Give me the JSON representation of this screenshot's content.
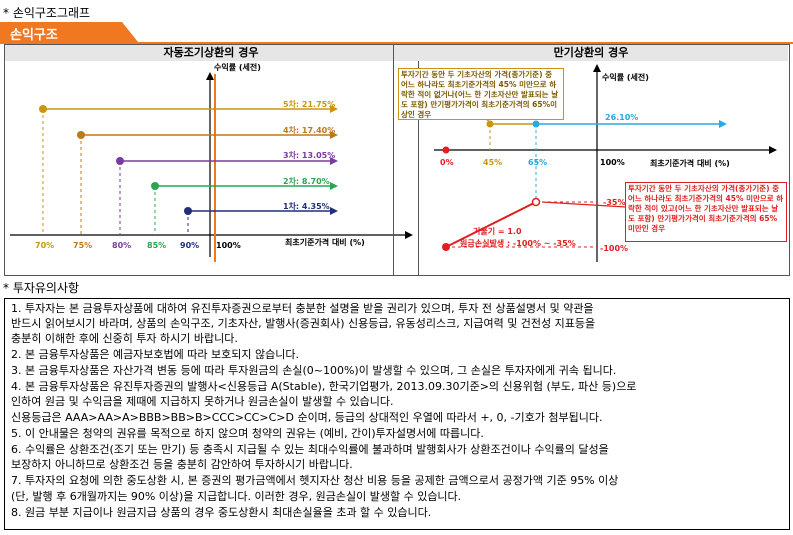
{
  "header": {
    "section_title": "* 손익구조그래프",
    "tab_label": "손익구조"
  },
  "left_panel": {
    "title": "자동조기상환의 경우",
    "y_axis_label": "수익률 (세전)",
    "x_axis_label": "최초기준가격 대비 (%)",
    "x_ticks": [
      "70%",
      "75%",
      "80%",
      "85%",
      "90%",
      "100%"
    ],
    "series_labels": [
      "5차: 21.75%",
      "4차: 17.40%",
      "3차: 13.05%",
      "2차: 8.70%",
      "1차: 4.35%"
    ]
  },
  "right_panel": {
    "title": "만기상환의 경우",
    "y_axis_label": "수익률 (세전)",
    "x_axis_label": "최초기준가격 대비 (%)",
    "x_ticks": [
      "0%",
      "45%",
      "65%",
      "100%"
    ],
    "return_label": "26.10%",
    "loss_label_35": "-35%",
    "loss_label_100": "-100%",
    "slope_label": "기울기 = 1.0",
    "loss_range_label": "원금손실발생 : -100% ~ -35%",
    "callout_top": "투자기간 동안 두 기초자산의 가격(종가기준) 중 어느 하나라도 최초기준가격의 45% 미만으로 하락한 적이 없거나(어느 한 기초자산만 발표되는 날도 포함) 만기평가가격이 최초기준가격의 65%이상인 경우",
    "callout_bottom": "투자기간 동안 두 기초자산의 가격(종가기준) 중 어느 하나라도 최초기준가격의 45% 미만으로 하락한 적이 있고(어느 한 기초자산만 발표되는 날도 포함) 만기평가가격이 최초기준가격의 65%미만인 경우"
  },
  "notes_section": {
    "title": "* 투자유의사항",
    "lines": [
      "1. 투자자는 본 금융투자상품에 대하여 유진투자증권으로부터 충분한 설명을 받을 권리가 있으며, 투자 전 상품설명서 및 약관을",
      "    반드시 읽어보시기 바라며, 상품의 손익구조, 기초자산, 발행사(증권회사) 신용등급, 유동성리스크, 지급여력 및 건전성 지표등을",
      "    충분히 이해한 후에 신중히 투자 하시기 바랍니다.",
      "2. 본 금융투자상품은 예금자보호법에 따라 보호되지 않습니다.",
      "3. 본 금융투자상품은 자산가격 변동 등에 따라 투자원금의 손실(0~100%)이 발생할 수 있으며, 그 손실은 투자자에게 귀속 됩니다.",
      "4. 본 금융투자상품은 유진투자증권의 발행사<신용등급 A(Stable), 한국기업평가, 2013.09.30기준>의 신용위험 (부도, 파산 등)으로",
      "    인하여 원금 및 수익금을 제때에 지급하지 못하거나 원금손실이 발생할 수 있습니다.",
      "    신용등급은 AAA>AA>A>BBB>BB>B>CCC>CC>C>D 순이며, 등급의 상대적인 우열에 따라서 +, 0, -기호가 첨부됩니다.",
      "5. 이 안내물은 청약의 권유를 목적으로 하지 않으며 청약의 권유는 (예비, 간이)투자설명서에 따릅니다.",
      "6. 수익률은 상환조건(조기 또는 만기) 등 충족시 지급될 수 있는 최대수익률에 불과하며 발행회사가 상환조건이나 수익률의 달성을",
      "    보장하지 아니하므로 상환조건 등을 충분히 감안하여 투자하시기 바랍니다.",
      "7. 투자자의 요청에 의한 중도상환 시, 본 증권의 평가금액에서 헷지자산 청산 비용 등을 공제한 금액으로서 공정가액 기준 95% 이상",
      "    (단, 발행 후 6개월까지는 90% 이상)을 지급합니다. 이러한 경우, 원금손실이 발생할 수 있습니다.",
      "8. 원금 부분 지급이나 원금지급 상품의 경우 중도상환시 최대손실율을 초과 할 수 있습니다."
    ]
  },
  "colors": {
    "banner": "#f07820",
    "line5": "#c89610",
    "line4": "#c0781e",
    "line3": "#7a3aa0",
    "line2": "#2aa650",
    "line1": "#1f2f78",
    "blue": "#2aa8e0",
    "red": "#e02020",
    "accent_vertical": "#f07820"
  }
}
